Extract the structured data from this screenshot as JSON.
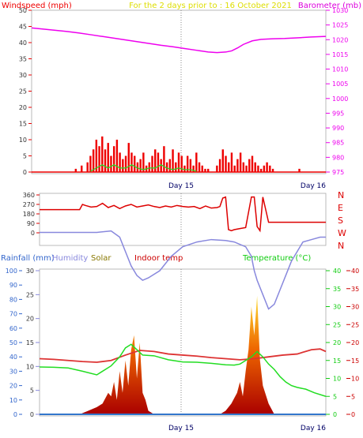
{
  "colors": {
    "wind": "#ee0000",
    "gust_green": "#22dd22",
    "baro": "#ee00ee",
    "title": "#dddd00",
    "winddir": "#dd0000",
    "axis_text": "#333333",
    "rain": "#3366cc",
    "humidity": "#8888dd",
    "solar": "#887700",
    "indoor": "#cc0000",
    "temperature": "#11cc11",
    "grid": "#999999"
  },
  "chart_data": [
    {
      "type": "line",
      "title": "For the 2 days prior to : 16 October 2021",
      "ylabel_left": "Windspeed (mph)",
      "ylabel_right": "Barometer (mb)",
      "x_ticks": [
        "Day 15",
        "Day 16"
      ],
      "y_left_ticks": [
        "0",
        "5",
        "10",
        "15",
        "20",
        "25",
        "30",
        "35",
        "40",
        "45",
        "50"
      ],
      "y_left_range": [
        0,
        50
      ],
      "y_right_ticks": [
        "975",
        "980",
        "985",
        "990",
        "995",
        "1000",
        "1005",
        "1010",
        "1015",
        "1020",
        "1025",
        "1030"
      ],
      "y_right_range": [
        975,
        1030
      ],
      "series": [
        {
          "name": "Barometer (mb)",
          "x": [
            0,
            0.04,
            0.08,
            0.12,
            0.16,
            0.2,
            0.24,
            0.28,
            0.32,
            0.36,
            0.4,
            0.44,
            0.48,
            0.52,
            0.56,
            0.6,
            0.63,
            0.66,
            0.68,
            0.7,
            0.72,
            0.75,
            0.78,
            0.82,
            0.86,
            0.9,
            0.95,
            1.0
          ],
          "y": [
            1024,
            1023.6,
            1023.2,
            1022.8,
            1022.3,
            1021.7,
            1021.1,
            1020.5,
            1019.9,
            1019.3,
            1018.7,
            1018.1,
            1017.6,
            1017.0,
            1016.4,
            1015.8,
            1015.6,
            1015.8,
            1016.2,
            1017.2,
            1018.4,
            1019.6,
            1020.1,
            1020.3,
            1020.4,
            1020.6,
            1020.9,
            1021.1
          ]
        },
        {
          "name": "Wind speed",
          "x": [
            0.15,
            0.17,
            0.19,
            0.2,
            0.21,
            0.22,
            0.23,
            0.24,
            0.25,
            0.26,
            0.27,
            0.28,
            0.29,
            0.3,
            0.31,
            0.32,
            0.33,
            0.34,
            0.35,
            0.36,
            0.37,
            0.38,
            0.39,
            0.4,
            0.41,
            0.42,
            0.43,
            0.44,
            0.45,
            0.46,
            0.47,
            0.48,
            0.49,
            0.5,
            0.51,
            0.52,
            0.53,
            0.54,
            0.55,
            0.56,
            0.57,
            0.58,
            0.59,
            0.6,
            0.63,
            0.64,
            0.65,
            0.66,
            0.67,
            0.68,
            0.69,
            0.7,
            0.71,
            0.72,
            0.73,
            0.74,
            0.75,
            0.76,
            0.77,
            0.78,
            0.79,
            0.8,
            0.81,
            0.82,
            0.91
          ],
          "y": [
            1,
            2,
            3,
            5,
            7,
            10,
            8,
            11,
            7,
            9,
            5,
            8,
            10,
            6,
            4,
            5,
            9,
            6,
            5,
            3,
            4,
            6,
            2,
            3,
            5,
            7,
            6,
            4,
            8,
            3,
            4,
            7,
            3,
            6,
            5,
            2,
            5,
            4,
            2,
            6,
            3,
            2,
            1,
            1,
            2,
            4,
            7,
            5,
            3,
            6,
            2,
            4,
            6,
            3,
            2,
            4,
            5,
            3,
            2,
            1,
            2,
            3,
            2,
            1,
            1
          ]
        },
        {
          "name": "Wind (green)",
          "x": [
            0.2,
            0.22,
            0.24,
            0.26,
            0.28,
            0.3,
            0.32,
            0.34,
            0.36,
            0.38,
            0.4,
            0.42,
            0.44,
            0.46,
            0.48,
            0.5,
            0.52,
            0.54,
            0.56
          ],
          "y": [
            0,
            1,
            2,
            1,
            2,
            1,
            1,
            2,
            1,
            0.5,
            1,
            1,
            2,
            1,
            0.5,
            1,
            0.5,
            0.5,
            0
          ]
        }
      ]
    },
    {
      "type": "line",
      "y_ticks": [
        "0",
        "90",
        "180",
        "270",
        "360"
      ],
      "y_range": [
        0,
        360
      ],
      "y_right_labels": [
        "N",
        "W",
        "S",
        "E",
        "N"
      ],
      "series": [
        {
          "name": "Wind direction",
          "x": [
            0,
            0.05,
            0.1,
            0.14,
            0.15,
            0.16,
            0.18,
            0.2,
            0.22,
            0.24,
            0.26,
            0.28,
            0.3,
            0.32,
            0.34,
            0.36,
            0.38,
            0.4,
            0.42,
            0.44,
            0.46,
            0.48,
            0.5,
            0.52,
            0.54,
            0.56,
            0.58,
            0.6,
            0.62,
            0.63,
            0.64,
            0.65,
            0.66,
            0.67,
            0.68,
            0.7,
            0.72,
            0.74,
            0.75,
            0.76,
            0.77,
            0.78,
            0.8,
            0.85,
            0.9,
            0.95,
            1.0
          ],
          "y": [
            220,
            220,
            220,
            220,
            270,
            260,
            245,
            250,
            280,
            240,
            260,
            230,
            255,
            270,
            245,
            255,
            265,
            250,
            240,
            255,
            245,
            260,
            250,
            245,
            250,
            230,
            255,
            235,
            240,
            250,
            330,
            340,
            30,
            20,
            30,
            40,
            50,
            340,
            340,
            60,
            20,
            340,
            100,
            100,
            100,
            100,
            100
          ]
        }
      ]
    },
    {
      "type": "line",
      "legend": [
        "Rainfall (mm)",
        "Humidity",
        "Solar",
        "Indoor temp",
        "Temperature (°C)"
      ],
      "x_ticks": [
        "Day 15",
        "Day 16"
      ],
      "rain_ticks": [
        "0",
        "10",
        "20",
        "30",
        "40",
        "50",
        "60",
        "70",
        "80",
        "90",
        "100"
      ],
      "rain_range": [
        0,
        100
      ],
      "hum_ticks": [
        "0",
        "5",
        "10",
        "15",
        "20",
        "25",
        "30"
      ],
      "hum_range": [
        0,
        30
      ],
      "temp_ticks": [
        "0",
        "5",
        "10",
        "15",
        "20",
        "25",
        "30",
        "35",
        "40"
      ],
      "temp_range": [
        0,
        40
      ],
      "series": [
        {
          "name": "Humidity",
          "x": [
            0,
            0.1,
            0.2,
            0.25,
            0.28,
            0.3,
            0.32,
            0.34,
            0.36,
            0.38,
            0.42,
            0.46,
            0.5,
            0.55,
            0.6,
            0.65,
            0.68,
            0.7,
            0.72,
            0.74,
            0.75,
            0.76,
            0.78,
            0.8,
            0.82,
            0.84,
            0.86,
            0.88,
            0.9,
            0.92,
            0.95,
            0.98,
            1.0
          ],
          "y": [
            38,
            38,
            38,
            38.3,
            37,
            34,
            31,
            29,
            28,
            28.5,
            30,
            33,
            35,
            36,
            36.5,
            36.3,
            36,
            35.5,
            35,
            33,
            30,
            28,
            25,
            22,
            23,
            26,
            29,
            32,
            34,
            36,
            36.5,
            37,
            37
          ]
        },
        {
          "name": "Indoor temp",
          "x": [
            0,
            0.05,
            0.1,
            0.15,
            0.2,
            0.25,
            0.3,
            0.35,
            0.4,
            0.45,
            0.5,
            0.55,
            0.6,
            0.65,
            0.7,
            0.75,
            0.8,
            0.85,
            0.9,
            0.95,
            0.98,
            1.0
          ],
          "y": [
            15.5,
            15.3,
            15,
            14.7,
            14.5,
            15,
            16.5,
            17.8,
            17.5,
            16.8,
            16.5,
            16.2,
            15.8,
            15.5,
            15.2,
            15.5,
            16,
            16.5,
            16.8,
            18,
            18.2,
            17.5
          ]
        },
        {
          "name": "Temperature (°C)",
          "x": [
            0,
            0.05,
            0.1,
            0.15,
            0.2,
            0.25,
            0.28,
            0.3,
            0.32,
            0.34,
            0.36,
            0.4,
            0.45,
            0.5,
            0.55,
            0.6,
            0.65,
            0.68,
            0.7,
            0.72,
            0.74,
            0.76,
            0.78,
            0.8,
            0.82,
            0.84,
            0.86,
            0.88,
            0.9,
            0.93,
            0.96,
            1.0
          ],
          "y": [
            13.2,
            13.1,
            12.9,
            12,
            11,
            13.5,
            16,
            18.5,
            19.5,
            18,
            16.5,
            16.3,
            15.2,
            14.6,
            14.5,
            14.2,
            13.8,
            13.7,
            14,
            15,
            16,
            17.5,
            16,
            14,
            12.5,
            10.5,
            9,
            8,
            7.5,
            7,
            6,
            5
          ]
        },
        {
          "name": "Solar",
          "x": [
            0.14,
            0.17,
            0.2,
            0.22,
            0.24,
            0.25,
            0.26,
            0.27,
            0.28,
            0.29,
            0.3,
            0.31,
            0.32,
            0.33,
            0.34,
            0.35,
            0.36,
            0.37,
            0.38,
            0.4,
            0.63,
            0.65,
            0.67,
            0.69,
            0.7,
            0.71,
            0.72,
            0.73,
            0.74,
            0.75,
            0.76,
            0.77,
            0.78,
            0.8,
            0.82
          ],
          "y": [
            0,
            1,
            2,
            3,
            6,
            5,
            9,
            4,
            12,
            6,
            15,
            8,
            18,
            22,
            10,
            20,
            6,
            4,
            1,
            0,
            0,
            1,
            3,
            6,
            9,
            5,
            12,
            18,
            30,
            22,
            33,
            15,
            8,
            3,
            0
          ]
        },
        {
          "name": "Rainfall (mm)",
          "x": [
            0,
            1
          ],
          "y": [
            0,
            0
          ]
        }
      ]
    }
  ]
}
